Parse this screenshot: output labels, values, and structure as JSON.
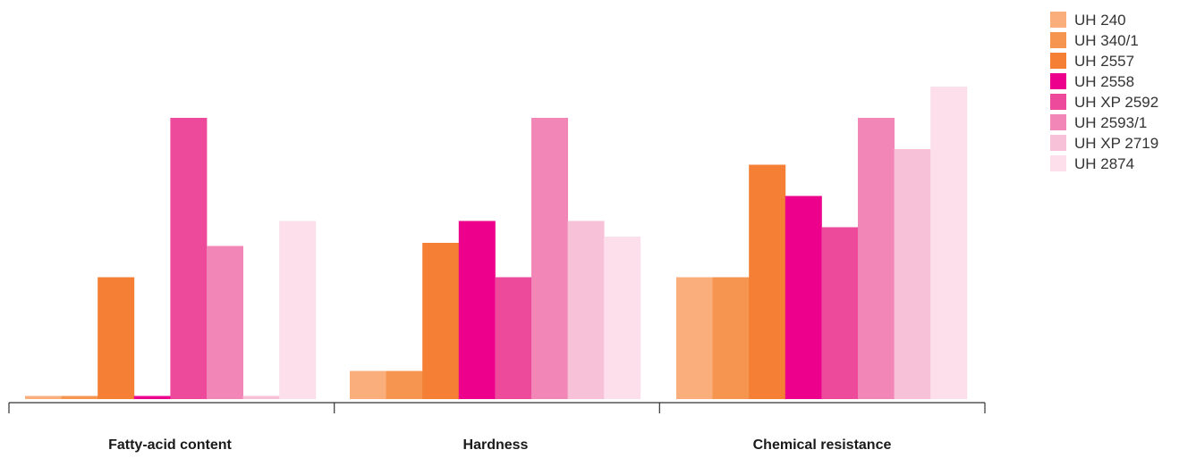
{
  "chart_data": {
    "type": "bar",
    "title": "",
    "xlabel": "",
    "ylabel": "",
    "grid": false,
    "legend": "top-right",
    "ylim": [
      0,
      10
    ],
    "categories": [
      "Fatty-acid content",
      "Hardness",
      "Chemical resistance"
    ],
    "series": [
      {
        "name": "UH 240",
        "color": "#F9AE7B",
        "values": [
          0.1,
          0.9,
          3.9
        ]
      },
      {
        "name": "UH 340/1",
        "color": "#F5954F",
        "values": [
          0.1,
          0.9,
          3.9
        ]
      },
      {
        "name": "UH 2557",
        "color": "#F47F35",
        "values": [
          3.9,
          5.0,
          7.5
        ]
      },
      {
        "name": "UH 2558",
        "color": "#EC008C",
        "values": [
          0.1,
          5.7,
          6.5
        ]
      },
      {
        "name": "UH XP 2592",
        "color": "#EE4A9B",
        "values": [
          9.0,
          3.9,
          5.5
        ]
      },
      {
        "name": "UH 2593/1",
        "color": "#F287B7",
        "values": [
          4.9,
          9.0,
          9.0
        ]
      },
      {
        "name": "UH XP 2719",
        "color": "#F7C1D8",
        "values": [
          0.1,
          5.7,
          8.0
        ]
      },
      {
        "name": "UH 2874",
        "color": "#FCDFEA",
        "values": [
          5.7,
          5.2,
          10.0
        ]
      }
    ]
  }
}
